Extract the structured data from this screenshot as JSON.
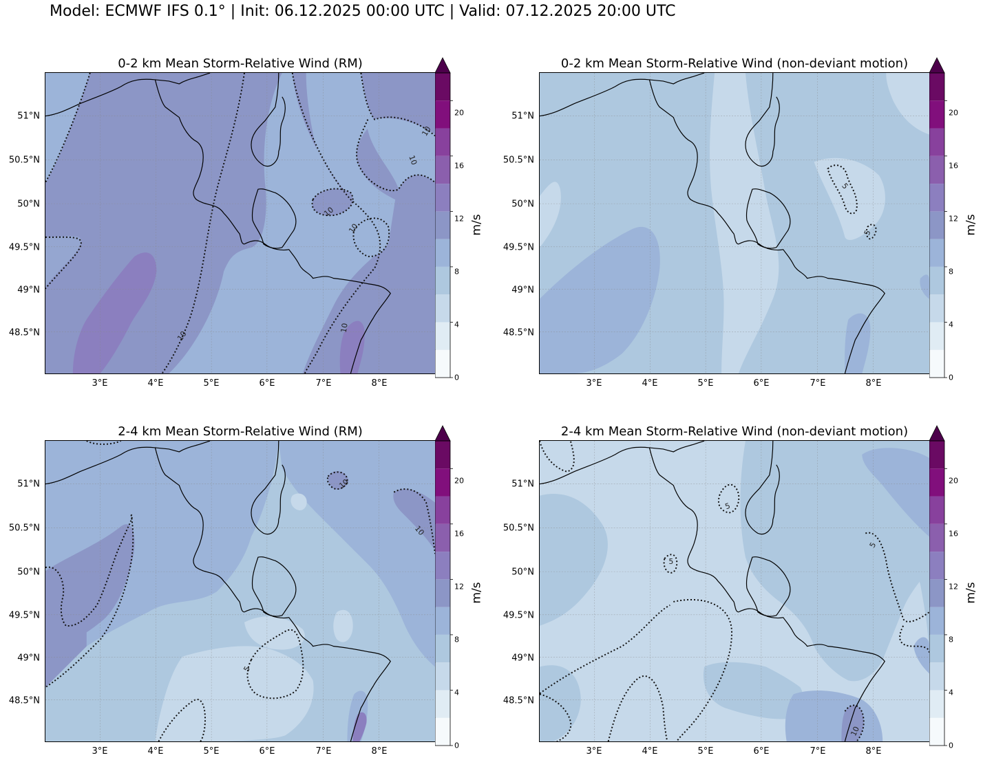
{
  "header": {
    "title": "Model: ECMWF IFS 0.1° | Init: 06.12.2025 00:00 UTC | Valid: 07.12.2025 20:00 UTC"
  },
  "axes": {
    "lat_labels": [
      "51°N",
      "50.5°N",
      "50°N",
      "49.5°N",
      "49°N",
      "48.5°N"
    ],
    "lon_labels": [
      "3°E",
      "4°E",
      "5°E",
      "6°E",
      "7°E",
      "8°E"
    ]
  },
  "colorbar": {
    "unit_label": "m/s",
    "ticks": [
      "0",
      "4",
      "8",
      "12",
      "16",
      "20"
    ],
    "levels": [
      0,
      2,
      4,
      6,
      8,
      10,
      12,
      14,
      16,
      18,
      20,
      22
    ],
    "colors": [
      "#f6fafc",
      "#e0ecf4",
      "#c6d9ea",
      "#aec8df",
      "#9cb4d9",
      "#8c96c6",
      "#8c7fbf",
      "#8b5fad",
      "#88419d",
      "#810f7c",
      "#6a0a63",
      "#4d004b"
    ]
  },
  "panels": [
    {
      "title": "0-2 km Mean Storm-Relative Wind (RM)",
      "contour_labels": [
        "10",
        "10",
        "10",
        "10",
        "10",
        "10"
      ]
    },
    {
      "title": "0-2 km Mean Storm-Relative Wind (non-deviant motion)",
      "contour_labels": [
        "5",
        "5"
      ]
    },
    {
      "title": "2-4 km Mean Storm-Relative Wind (RM)",
      "contour_labels": [
        "10",
        "10",
        "5"
      ]
    },
    {
      "title": "2-4 km Mean Storm-Relative Wind (non-deviant motion)",
      "contour_labels": [
        "5",
        "5",
        "5",
        "10"
      ]
    }
  ]
}
